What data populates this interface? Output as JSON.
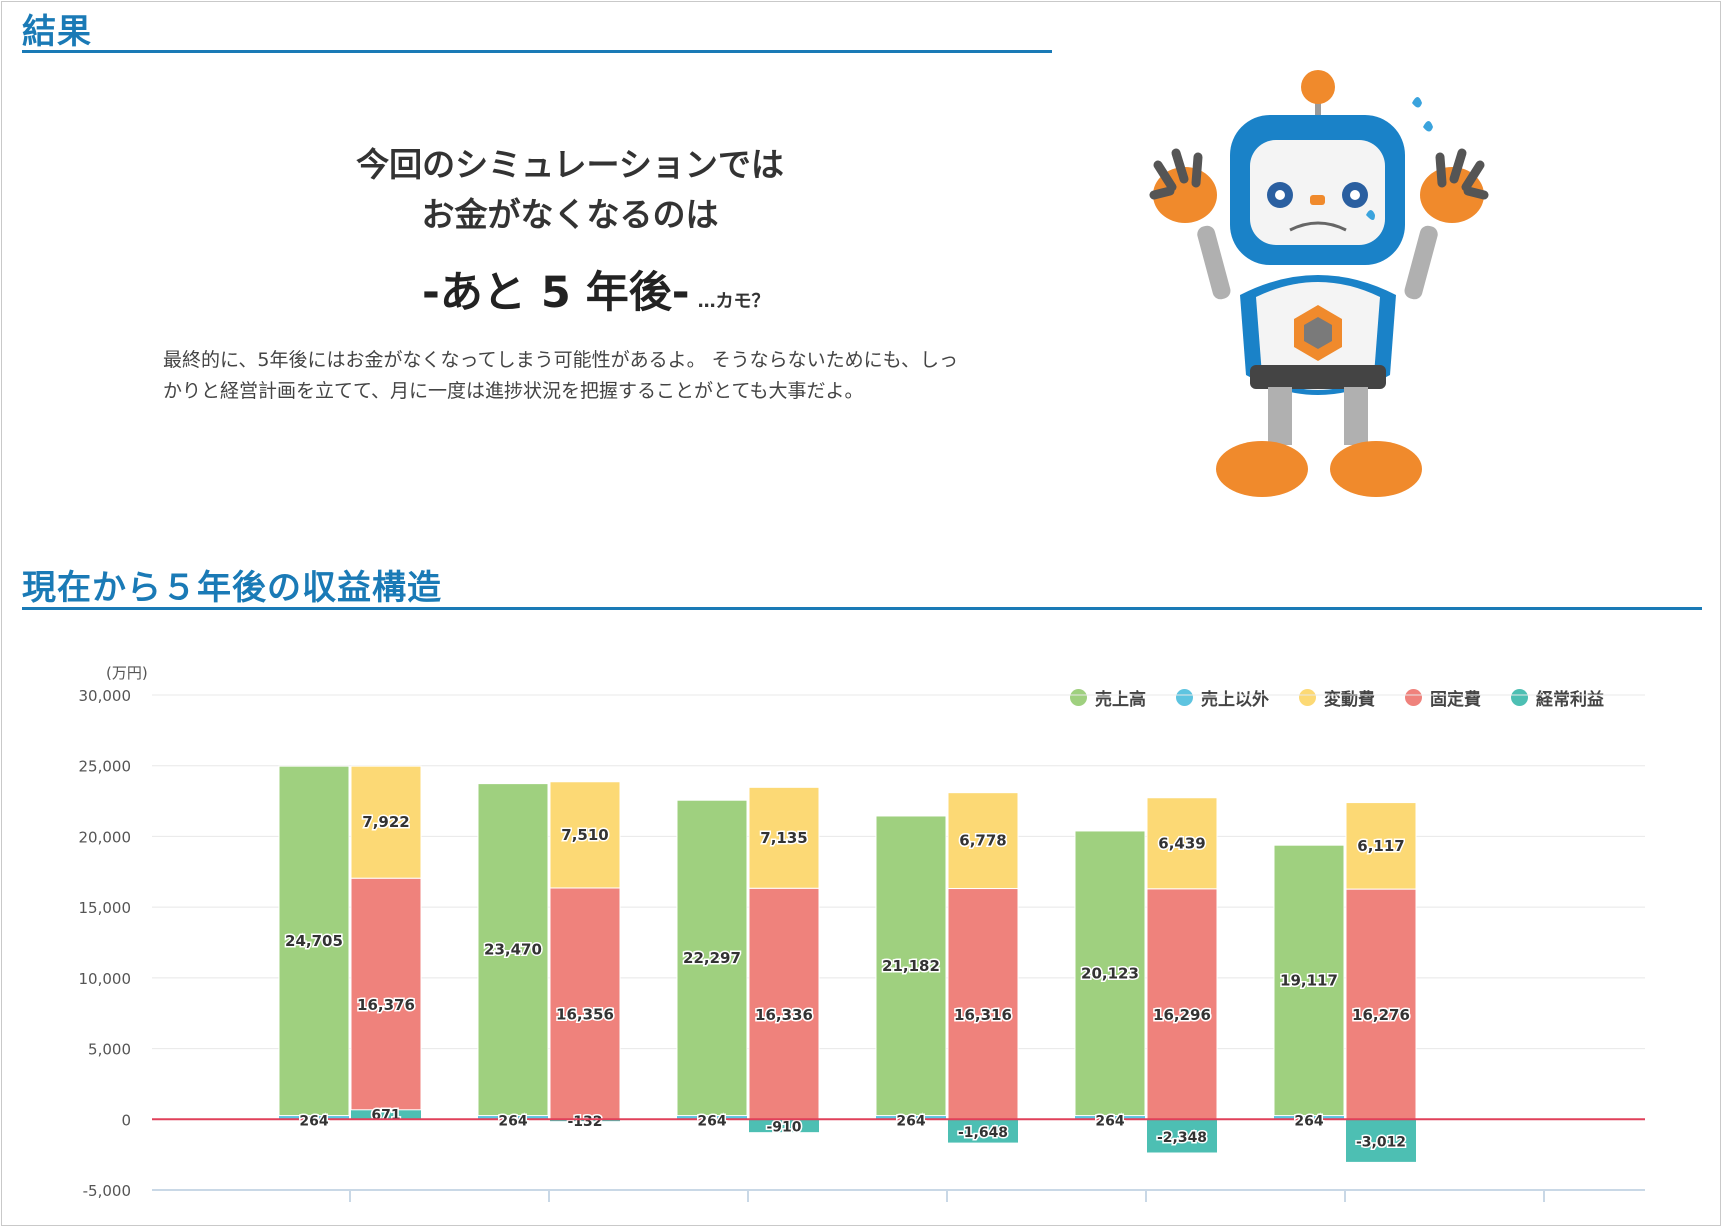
{
  "result": {
    "title": "結果",
    "line1": "今回のシミュレーションでは",
    "line2": "お金がなくなるのは",
    "big": "-あと 5 年後-",
    "small": "…カモ？",
    "desc": "最終的に、5年後にはお金がなくなってしまう可能性があるよ。 そうならないためにも、しっかりと経営計画を立てて、月に一度は進捗状況を把握することがとても大事だよ。"
  },
  "chart_section": {
    "title": "現在から５年後の収益構造"
  },
  "colors": {
    "accent": "#1a7ab6",
    "sales": "#9fd07f",
    "non_sales": "#5ec4e0",
    "variable": "#fcd975",
    "fixed": "#ef827c",
    "profit": "#4dbfb3",
    "zero_line": "#e0405a"
  },
  "chart_data": {
    "type": "bar",
    "stacked": true,
    "title": "現在から５年後の収益構造",
    "unit_label": "(万円)",
    "ylim": [
      -5000,
      30000
    ],
    "yticks": [
      -5000,
      0,
      5000,
      10000,
      15000,
      20000,
      25000,
      30000
    ],
    "ytick_labels": [
      "-5,000",
      "0",
      "5,000",
      "10,000",
      "15,000",
      "20,000",
      "25,000",
      "30,000"
    ],
    "categories": [
      "",
      "",
      "",
      "",
      "",
      ""
    ],
    "legend": [
      "売上高",
      "売上以外",
      "変動費",
      "固定費",
      "経常利益"
    ],
    "legend_position": "top-right",
    "series": [
      {
        "name": "売上高",
        "stack": "income",
        "values": [
          24705,
          23470,
          22297,
          21182,
          20123,
          19117
        ],
        "labels": [
          "24,705",
          "23,470",
          "22,297",
          "21,182",
          "20,123",
          "19,117"
        ]
      },
      {
        "name": "売上以外",
        "stack": "income",
        "values": [
          264,
          264,
          264,
          264,
          264,
          264
        ],
        "labels": [
          "264",
          "264",
          "264",
          "264",
          "264",
          "264"
        ]
      },
      {
        "name": "変動費",
        "stack": "cost",
        "values": [
          7922,
          7510,
          7135,
          6778,
          6439,
          6117
        ],
        "labels": [
          "7,922",
          "7,510",
          "7,135",
          "6,778",
          "6,439",
          "6,117"
        ]
      },
      {
        "name": "固定費",
        "stack": "cost",
        "values": [
          16376,
          16356,
          16336,
          16316,
          16296,
          16276
        ],
        "labels": [
          "16,376",
          "16,356",
          "16,336",
          "16,316",
          "16,296",
          "16,276"
        ]
      },
      {
        "name": "経常利益",
        "stack": "cost",
        "values": [
          671,
          -132,
          -910,
          -1648,
          -2348,
          -3012
        ],
        "labels": [
          "671",
          "-132",
          "-910",
          "-1,648",
          "-2,348",
          "-3,012"
        ]
      }
    ]
  }
}
